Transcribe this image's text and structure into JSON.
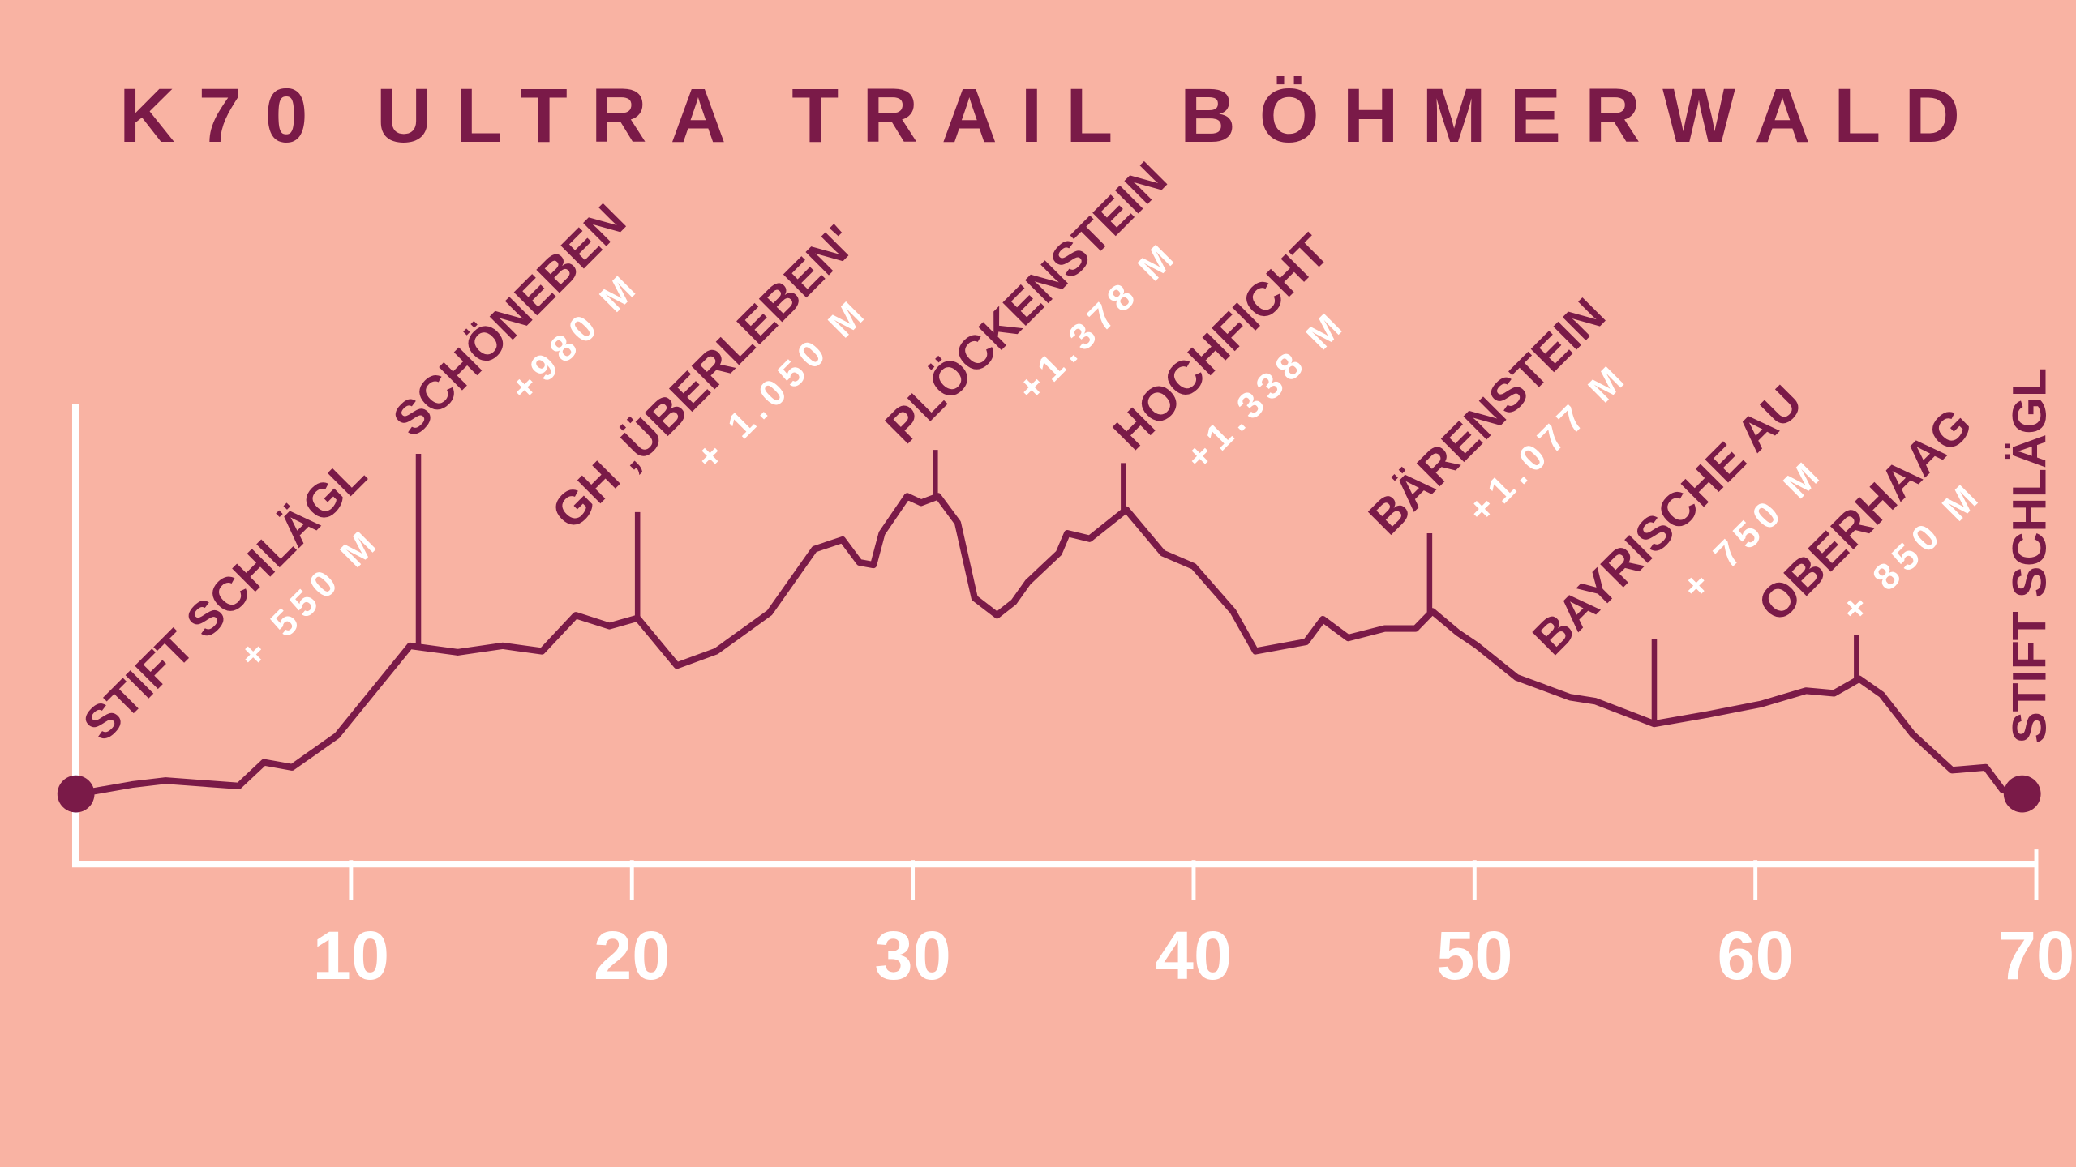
{
  "chart_data": {
    "type": "line",
    "title": "K70 ULTRA TRAIL BÖHMERWALD",
    "color": "#7a1a48",
    "axis_color": "#ffffff",
    "background": "#f9b3a3",
    "x": [
      0.3,
      2.2,
      3.4,
      6.0,
      6.9,
      7.9,
      9.5,
      12.1,
      13.8,
      15.4,
      16.8,
      18.0,
      19.2,
      20.2,
      21.6,
      23.0,
      24.9,
      26.5,
      27.5,
      28.1,
      28.6,
      28.9,
      29.8,
      30.3,
      30.9,
      31.6,
      32.2,
      33.0,
      33.6,
      34.1,
      35.2,
      35.5,
      36.3,
      37.6,
      38.9,
      40.0,
      41.4,
      42.2,
      44.0,
      44.6,
      45.5,
      46.8,
      47.9,
      48.5,
      49.4,
      50.1,
      51.5,
      53.4,
      54.3,
      56.4,
      58.3,
      60.2,
      61.8,
      62.8,
      63.7,
      64.5,
      65.6,
      67.0,
      68.2,
      68.8,
      69.5
    ],
    "values": [
      550,
      576,
      587,
      572,
      638,
      624,
      712,
      962,
      944,
      962,
      947,
      1047,
      1017,
      1039,
      907,
      947,
      1054,
      1231,
      1257,
      1194,
      1187,
      1275,
      1378,
      1360,
      1378,
      1304,
      1095,
      1047,
      1084,
      1139,
      1220,
      1275,
      1260,
      1341,
      1220,
      1183,
      1058,
      947,
      973,
      1036,
      984,
      1010,
      1010,
      1058,
      999,
      962,
      874,
      819,
      808,
      745,
      771,
      800,
      837,
      830,
      870,
      826,
      716,
      616,
      624,
      561,
      550
    ],
    "xlim": [
      0,
      70
    ],
    "xticks": [
      10,
      20,
      30,
      40,
      50,
      60,
      70
    ],
    "ylim": [
      366,
      1636
    ],
    "annotations": [
      {
        "x": 0.3,
        "label": "STIFT SCHLÄGL",
        "text": "+ 550 M"
      },
      {
        "x": 12.4,
        "label": "SCHÖNEBEN",
        "text": "+980 M"
      },
      {
        "x": 20.2,
        "label": "GH ‚ÜBERLEBEN'",
        "text": "+ 1.050 M"
      },
      {
        "x": 30.8,
        "label": "PLÖCKENSTEIN",
        "text": "+1.378 M"
      },
      {
        "x": 37.5,
        "label": "HOCHFICHT",
        "text": "+1.338 M"
      },
      {
        "x": 48.4,
        "label": "BÄRENSTEIN",
        "text": "+1.077 M"
      },
      {
        "x": 56.4,
        "label": "BAYRISCHE AU",
        "text": "+ 750 M"
      },
      {
        "x": 63.6,
        "label": "OBERHAAG",
        "text": "+ 850 M"
      },
      {
        "x": 69.5,
        "label": "STIFT SCHLÄGL"
      }
    ]
  }
}
